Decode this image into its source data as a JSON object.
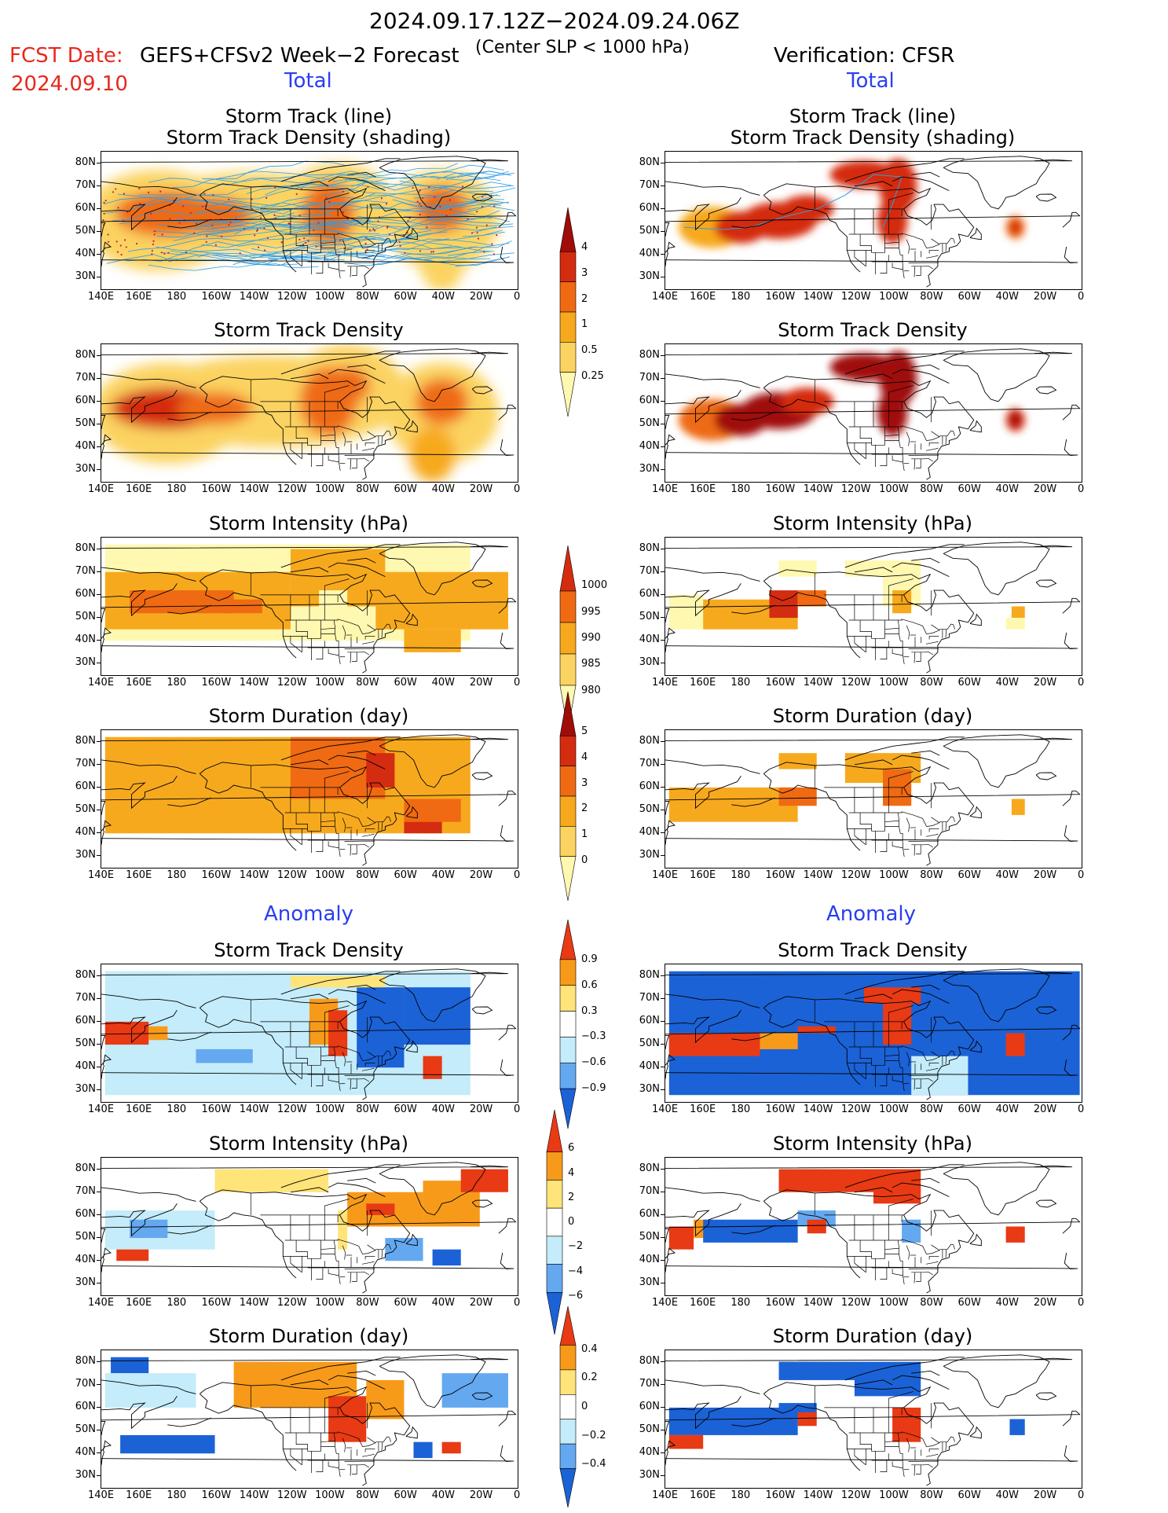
{
  "header": {
    "date_range": "2024.09.17.12Z−2024.09.24.06Z",
    "fcst_date_label": "FCST Date:",
    "fcst_date": "2024.09.10",
    "forecast_title": "GEFS+CFSv2 Week−2 Forecast",
    "criterion": "(Center SLP < 1000 hPa)",
    "verification": "Verification: CFSR"
  },
  "sections": {
    "total_left": "Total",
    "total_right": "Total",
    "anomaly_left": "Anomaly",
    "anomaly_right": "Anomaly"
  },
  "panel_titles": {
    "track_line": "Storm Track (line)",
    "track_shading": "Storm Track Density (shading)",
    "density": "Storm Track Density",
    "intensity": "Storm Intensity (hPa)",
    "duration": "Storm Duration (day)"
  },
  "axes": {
    "lat_labels": [
      "80N",
      "70N",
      "60N",
      "50N",
      "40N",
      "30N"
    ],
    "lon_labels": [
      "140E",
      "160E",
      "180",
      "160W",
      "140W",
      "120W",
      "100W",
      "80W",
      "60W",
      "40W",
      "20W",
      "0"
    ]
  },
  "colorbars": {
    "total_density": [
      "4",
      "3",
      "2",
      "1",
      "0.5",
      "0.25"
    ],
    "total_intensity": [
      "1000",
      "995",
      "990",
      "985",
      "980"
    ],
    "total_duration": [
      "5",
      "4",
      "3",
      "2",
      "1",
      "0"
    ],
    "anom_density": [
      "0.9",
      "0.6",
      "0.3",
      "−0.3",
      "−0.6",
      "−0.9"
    ],
    "anom_intensity": [
      "6",
      "4",
      "2",
      "0",
      "−2",
      "−4",
      "−6"
    ],
    "anom_duration": [
      "0.4",
      "0.2",
      "0",
      "−0.2",
      "−0.4"
    ]
  },
  "colors": {
    "seq": [
      "#fff8b0",
      "#fbd360",
      "#f7a91e",
      "#ef6a12",
      "#d42c10",
      "#a00c08"
    ],
    "div": [
      "#1b62d6",
      "#64a8f0",
      "#c4ecfa",
      "#ffffff",
      "#ffe47a",
      "#f79a1a",
      "#e83a14"
    ],
    "track_line": "#2e9de8",
    "track_dot": "#c02048",
    "coast": "#000000"
  }
}
